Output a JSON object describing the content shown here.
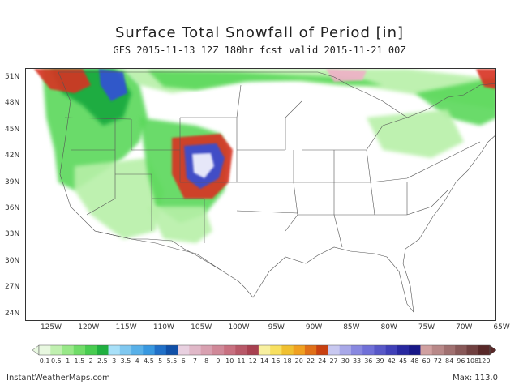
{
  "header": {
    "title": "Surface Total Snowfall of Period [in]",
    "subtitle": "GFS 2015-11-13 12Z 180hr fcst valid 2015-11-21 00Z"
  },
  "map": {
    "lat_labels": [
      "51N",
      "48N",
      "45N",
      "42N",
      "39N",
      "36N",
      "33N",
      "30N",
      "27N",
      "24N"
    ],
    "lon_labels": [
      "125W",
      "120W",
      "115W",
      "110W",
      "105W",
      "100W",
      "95W",
      "90W",
      "85W",
      "80W",
      "75W",
      "70W",
      "65W"
    ],
    "colors": {
      "light_green": "#b7f0a8",
      "green": "#5ad85a",
      "dark_green": "#18a83c",
      "blue": "#3050d8",
      "purple": "#8860d0",
      "red": "#d83020",
      "orange": "#f08828",
      "yellow": "#f0e040",
      "pink": "#f0b0c8",
      "white": "#f8f8ff"
    }
  },
  "legend": {
    "labels": [
      "0.1",
      "0.5",
      "1",
      "1.5",
      "2",
      "2.5",
      "3",
      "3.5",
      "4",
      "4.5",
      "5",
      "5.5",
      "6",
      "7",
      "8",
      "9",
      "10",
      "11",
      "12",
      "14",
      "16",
      "18",
      "20",
      "22",
      "24",
      "27",
      "30",
      "33",
      "36",
      "39",
      "42",
      "45",
      "48",
      "60",
      "72",
      "84",
      "96",
      "108",
      "120"
    ],
    "colors": [
      "#e8f8e0",
      "#c0f0b0",
      "#98e888",
      "#70dc68",
      "#48cc50",
      "#20b040",
      "#a8e0f8",
      "#80c8f0",
      "#58b0e8",
      "#3898e0",
      "#2070c8",
      "#1050a8",
      "#e8d0e0",
      "#e0b8c8",
      "#d8a0b0",
      "#d08898",
      "#c87080",
      "#b85868",
      "#a84050",
      "#f8f0a0",
      "#f8e060",
      "#f0c030",
      "#f0a020",
      "#e07018",
      "#c84010",
      "#c8c8f0",
      "#a8a8e8",
      "#8888e0",
      "#7070d8",
      "#5858c8",
      "#4040b8",
      "#2828a0",
      "#181888",
      "#d0a0a0",
      "#b88888",
      "#a07070",
      "#885858",
      "#704040",
      "#582828"
    ]
  },
  "footer": {
    "source": "InstantWeatherMaps.com",
    "max": "Max: 113.0"
  }
}
